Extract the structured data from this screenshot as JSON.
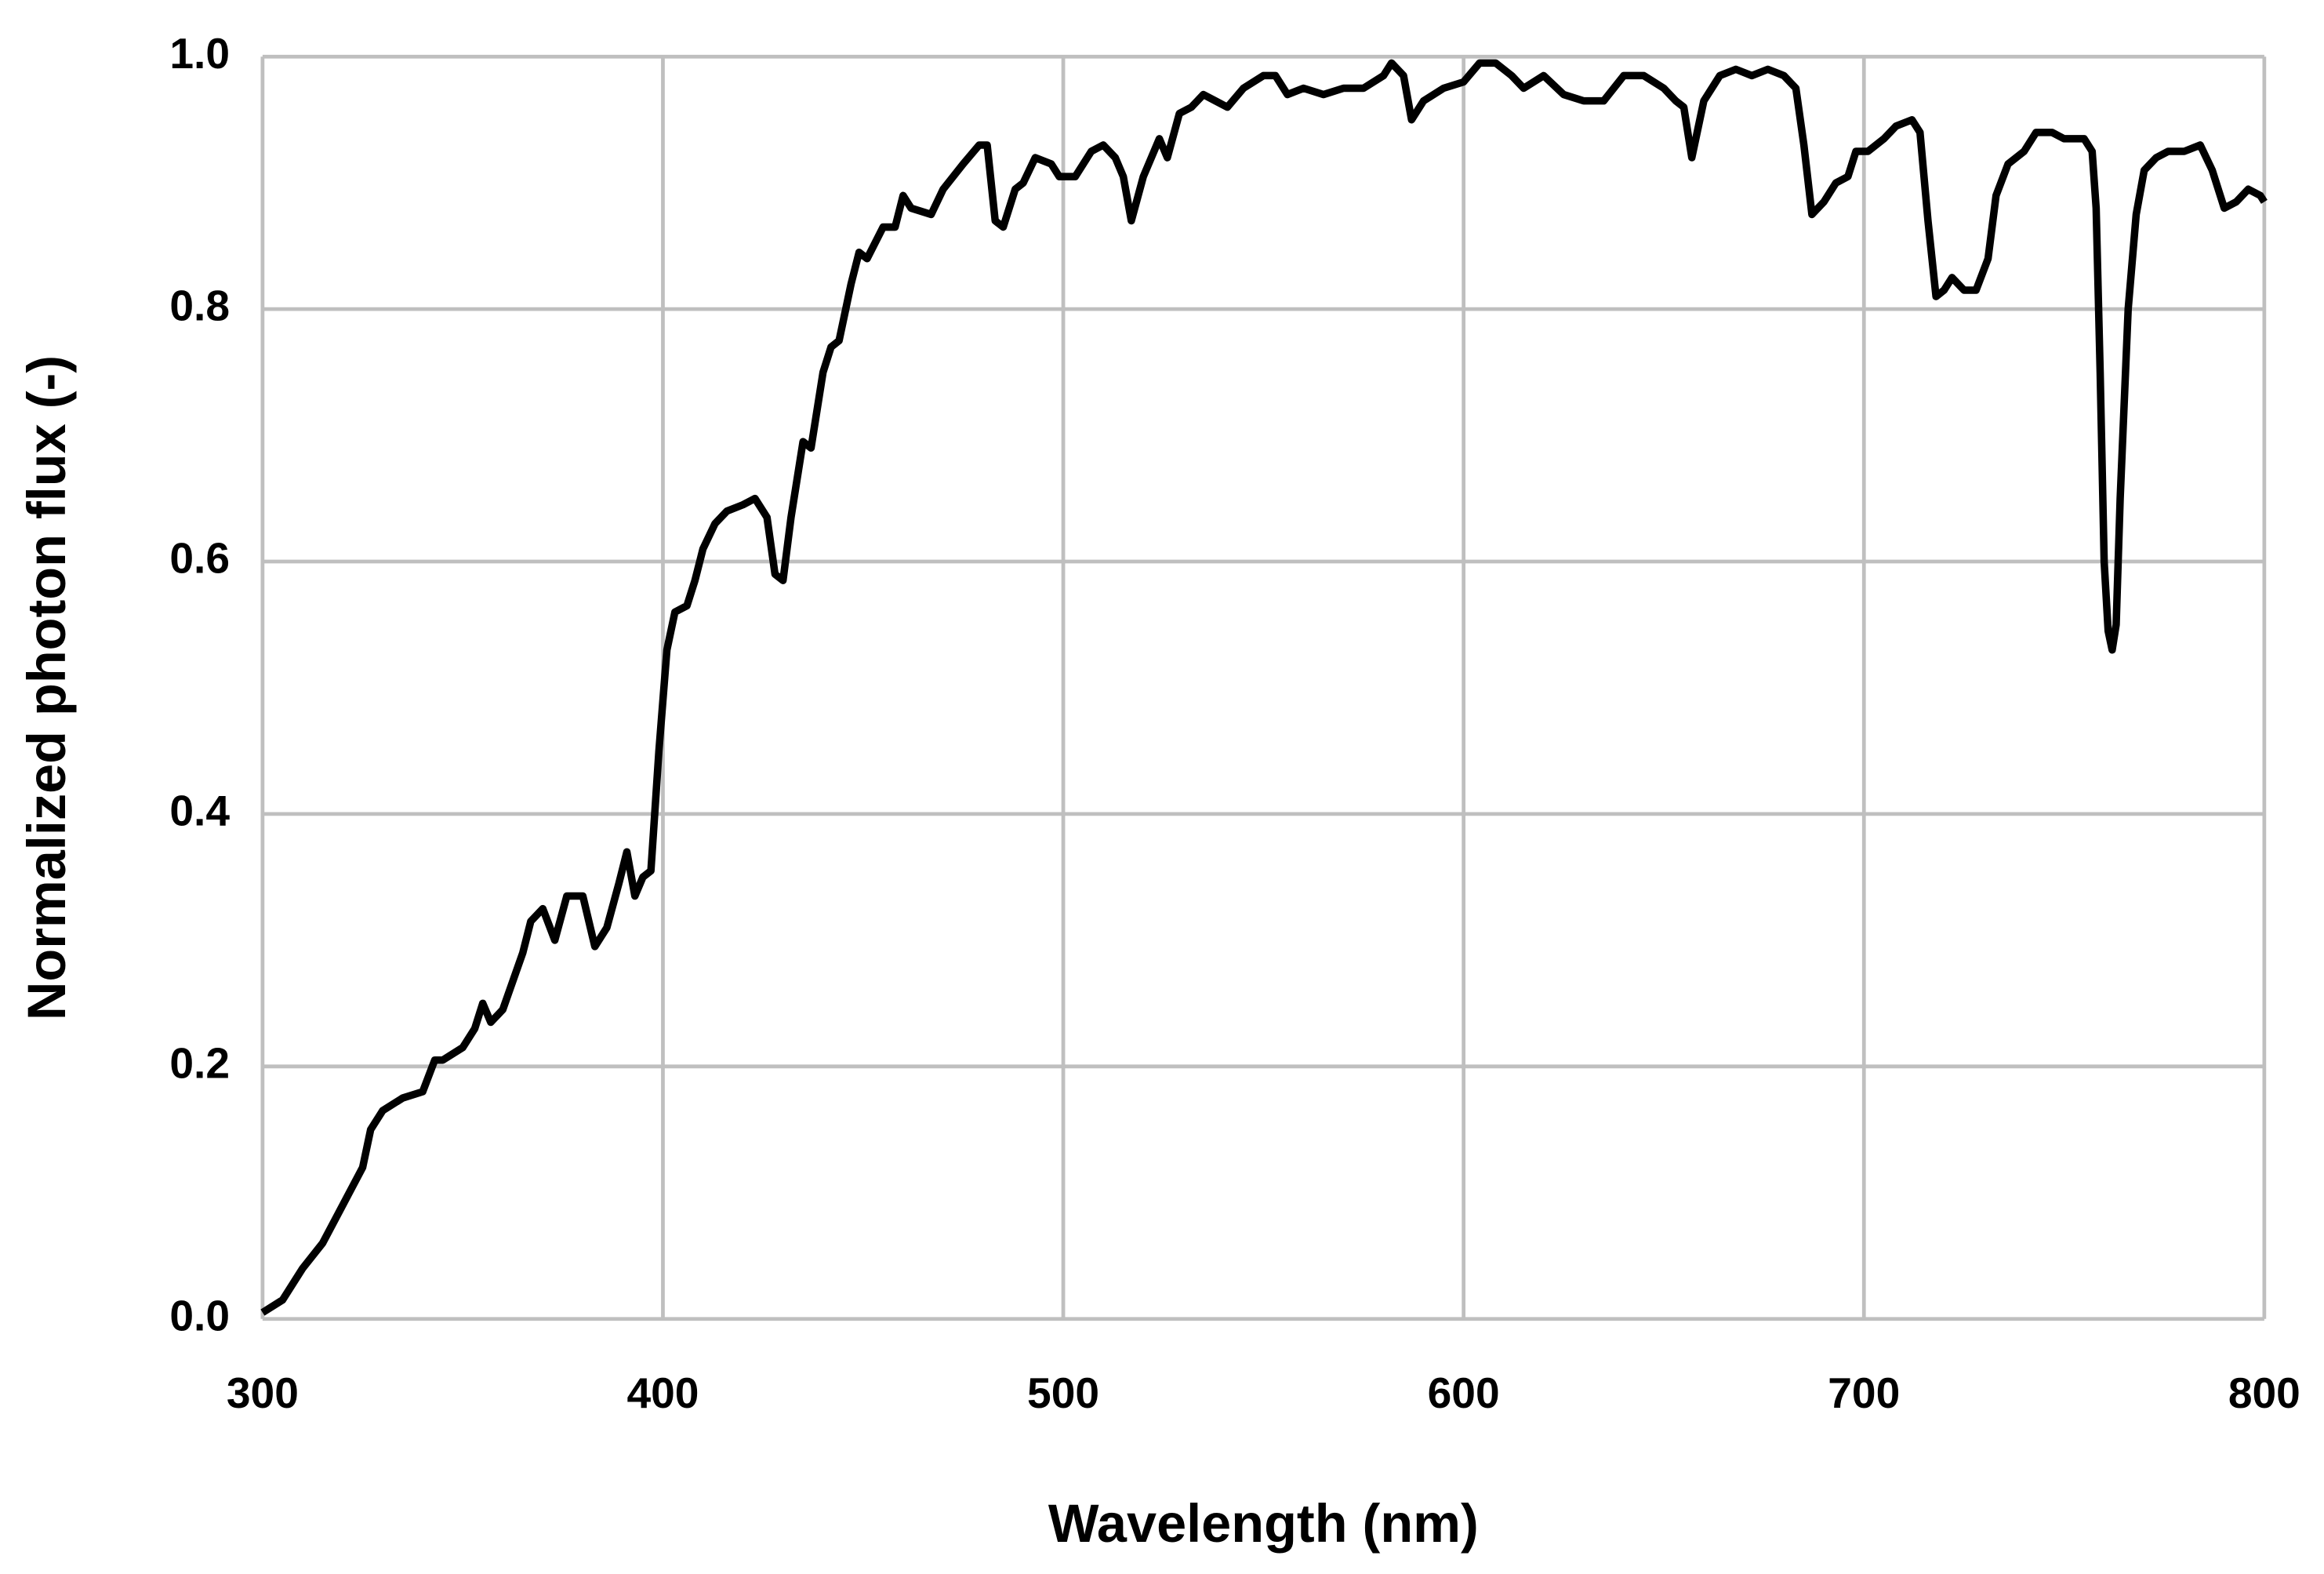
{
  "chart_data": {
    "type": "line",
    "xlabel": "Wavelength (nm)",
    "ylabel": "Normalized photon flux (-)",
    "xlim": [
      300,
      800
    ],
    "ylim": [
      0,
      1
    ],
    "xticks": [
      300,
      400,
      500,
      600,
      700,
      800
    ],
    "yticks": [
      {
        "value": 0,
        "label": "0.0"
      },
      0.2,
      0.4,
      0.6,
      0.8,
      {
        "value": 1,
        "label": "1.0"
      }
    ],
    "grid": true,
    "x": [
      300,
      305,
      310,
      315,
      320,
      325,
      327,
      330,
      335,
      340,
      343,
      345,
      350,
      353,
      355,
      357,
      360,
      365,
      367,
      370,
      373,
      376,
      380,
      383,
      386,
      389,
      391,
      393,
      395,
      397,
      399,
      401,
      403,
      406,
      408,
      410,
      413,
      416,
      420,
      423,
      426,
      428,
      430,
      432,
      435,
      437,
      440,
      442,
      444,
      447,
      449,
      451,
      455,
      458,
      460,
      462,
      467,
      470,
      475,
      479,
      481,
      483,
      485,
      488,
      490,
      493,
      497,
      499,
      503,
      507,
      510,
      513,
      515,
      517,
      520,
      524,
      526,
      529,
      532,
      535,
      538,
      541,
      545,
      550,
      553,
      556,
      560,
      565,
      570,
      575,
      580,
      582,
      585,
      587,
      590,
      595,
      600,
      604,
      608,
      612,
      615,
      620,
      625,
      630,
      635,
      640,
      645,
      650,
      653,
      655,
      657,
      660,
      664,
      668,
      672,
      676,
      680,
      683,
      685,
      687,
      690,
      693,
      696,
      698,
      701,
      705,
      708,
      712,
      714,
      716,
      718,
      720,
      722,
      725,
      728,
      731,
      733,
      736,
      740,
      743,
      747,
      750,
      755,
      757,
      758,
      759,
      760,
      761,
      762,
      763,
      764,
      766,
      768,
      770,
      773,
      776,
      780,
      784,
      787,
      790,
      793,
      796,
      799,
      800
    ],
    "series": [
      {
        "color": "#000000",
        "values": [
          0.005,
          0.015,
          0.04,
          0.06,
          0.09,
          0.12,
          0.15,
          0.165,
          0.175,
          0.18,
          0.205,
          0.205,
          0.215,
          0.23,
          0.25,
          0.235,
          0.245,
          0.29,
          0.315,
          0.325,
          0.3,
          0.335,
          0.335,
          0.295,
          0.31,
          0.345,
          0.37,
          0.335,
          0.35,
          0.355,
          0.45,
          0.53,
          0.56,
          0.565,
          0.585,
          0.61,
          0.63,
          0.64,
          0.645,
          0.65,
          0.635,
          0.59,
          0.585,
          0.635,
          0.695,
          0.69,
          0.75,
          0.77,
          0.775,
          0.82,
          0.845,
          0.84,
          0.865,
          0.865,
          0.89,
          0.88,
          0.875,
          0.895,
          0.915,
          0.93,
          0.93,
          0.87,
          0.865,
          0.895,
          0.9,
          0.92,
          0.915,
          0.905,
          0.905,
          0.925,
          0.93,
          0.92,
          0.905,
          0.87,
          0.905,
          0.935,
          0.92,
          0.955,
          0.96,
          0.97,
          0.965,
          0.96,
          0.975,
          0.985,
          0.985,
          0.97,
          0.975,
          0.97,
          0.975,
          0.975,
          0.985,
          0.995,
          0.985,
          0.95,
          0.965,
          0.975,
          0.98,
          0.995,
          0.995,
          0.985,
          0.975,
          0.985,
          0.97,
          0.965,
          0.965,
          0.985,
          0.985,
          0.975,
          0.965,
          0.96,
          0.92,
          0.965,
          0.985,
          0.99,
          0.985,
          0.99,
          0.985,
          0.975,
          0.93,
          0.875,
          0.885,
          0.9,
          0.905,
          0.925,
          0.925,
          0.935,
          0.945,
          0.95,
          0.94,
          0.87,
          0.81,
          0.815,
          0.825,
          0.815,
          0.815,
          0.84,
          0.89,
          0.915,
          0.925,
          0.94,
          0.94,
          0.935,
          0.935,
          0.925,
          0.88,
          0.75,
          0.6,
          0.545,
          0.53,
          0.55,
          0.65,
          0.8,
          0.875,
          0.91,
          0.92,
          0.925,
          0.925,
          0.93,
          0.91,
          0.88,
          0.885,
          0.895,
          0.89,
          0.885
        ]
      }
    ]
  }
}
